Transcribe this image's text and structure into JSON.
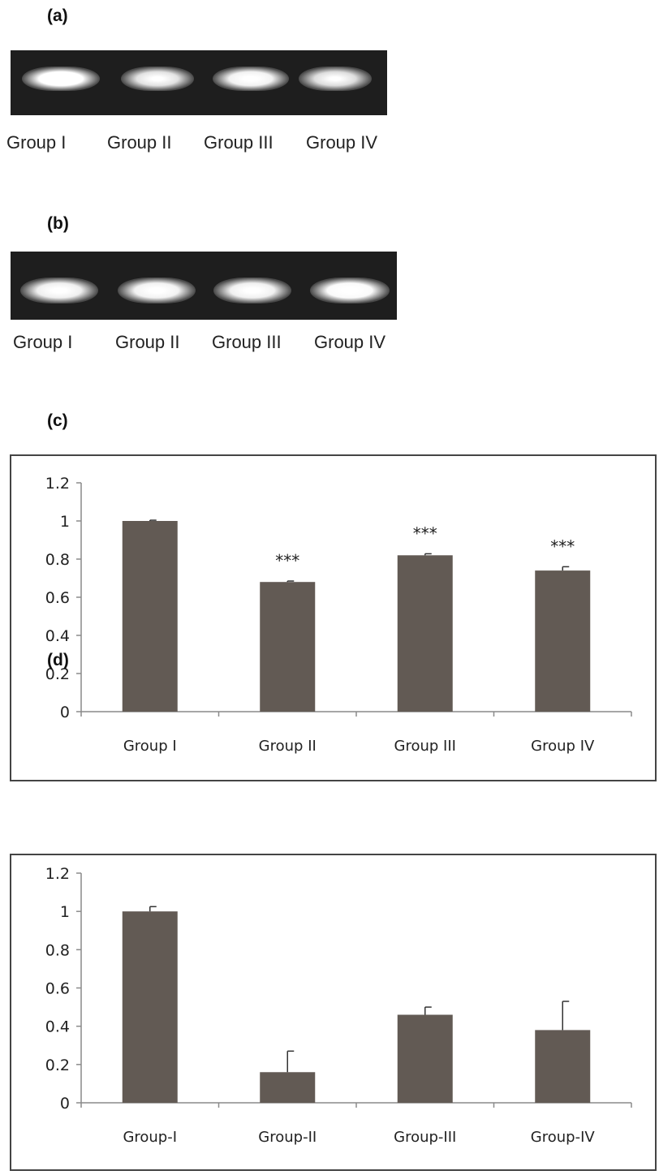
{
  "panels": {
    "a": {
      "letter": "(a)",
      "lanes": [
        "Group I",
        "Group II",
        "Group III",
        "Group IV"
      ],
      "band_intensity": [
        1.0,
        0.72,
        0.88,
        0.68
      ]
    },
    "b": {
      "letter": "(b)",
      "lanes": [
        "Group I",
        "Group II",
        "Group III",
        "Group IV"
      ],
      "band_intensity": [
        0.85,
        0.88,
        0.86,
        0.95
      ]
    },
    "c": {
      "letter": "(c)"
    },
    "d": {
      "letter": "(d)"
    }
  },
  "colors": {
    "bar": "#625a54",
    "gel_bg": "#1e1e1e",
    "axis": "#8a8a8a"
  },
  "chart_data": [
    {
      "id": "c",
      "type": "bar",
      "categories": [
        "Group I",
        "Group II",
        "Group III",
        "Group IV"
      ],
      "values": [
        1.0,
        0.68,
        0.82,
        0.74
      ],
      "errors": [
        0.004,
        0.005,
        0.008,
        0.02
      ],
      "annotations": [
        "",
        "***",
        "***",
        "***"
      ],
      "yticks": [
        "0",
        "0.2",
        "0.4",
        "0.6",
        "0.8",
        "1",
        "1.2"
      ],
      "ylim": [
        0,
        1.2
      ],
      "grid": false
    },
    {
      "id": "d",
      "type": "bar",
      "categories": [
        "Group-I",
        "Group-II",
        "Group-III",
        "Group-IV"
      ],
      "values": [
        1.0,
        0.16,
        0.46,
        0.38
      ],
      "errors": [
        0.025,
        0.11,
        0.04,
        0.15
      ],
      "annotations": [
        "",
        "",
        "",
        ""
      ],
      "yticks": [
        "0",
        "0.2",
        "0.4",
        "0.6",
        "0.8",
        "1",
        "1.2"
      ],
      "ylim": [
        0,
        1.2
      ],
      "grid": false
    }
  ]
}
